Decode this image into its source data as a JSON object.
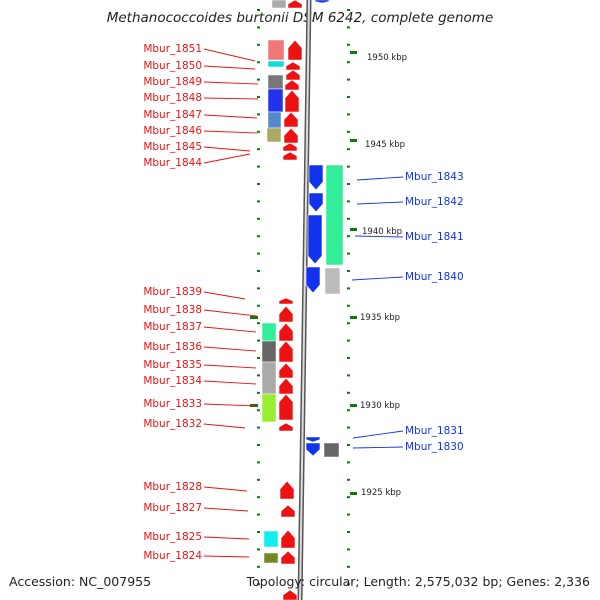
{
  "title": "Methanococcoides burtonii DSM 6242, complete genome",
  "footer": {
    "accession": "Accession: NC_007955",
    "summary": "Topology: circular; Length: 2,575,032 bp; Genes: 2,336"
  },
  "colors": {
    "forward": "#ee1111",
    "reverse": "#1133ee",
    "tick": "#117711",
    "backbone": "#888888"
  },
  "scale_labels": [
    "1950 kbp",
    "1945 kbp",
    "1940 kbp",
    "1935 kbp",
    "1930 kbp",
    "1925 kbp"
  ],
  "forward_genes": [
    "Mbur_1851",
    "Mbur_1850",
    "Mbur_1849",
    "Mbur_1848",
    "Mbur_1847",
    "Mbur_1846",
    "Mbur_1845",
    "Mbur_1844",
    "Mbur_1839",
    "Mbur_1838",
    "Mbur_1837",
    "Mbur_1836",
    "Mbur_1835",
    "Mbur_1834",
    "Mbur_1833",
    "Mbur_1832",
    "Mbur_1828",
    "Mbur_1827",
    "Mbur_1825",
    "Mbur_1824"
  ],
  "reverse_genes": [
    "Mbur_1843",
    "Mbur_1842",
    "Mbur_1841",
    "Mbur_1840",
    "Mbur_1831",
    "Mbur_1830"
  ],
  "cog_colors": [
    "#ee7777",
    "#11dddd",
    "#777777",
    "#2233ee",
    "#5588cc",
    "#aaaa66",
    "#33ee99",
    "#666666",
    "#aaaaaa",
    "#bbbbbb",
    "#99ee33",
    "#11eeee",
    "#778822"
  ]
}
